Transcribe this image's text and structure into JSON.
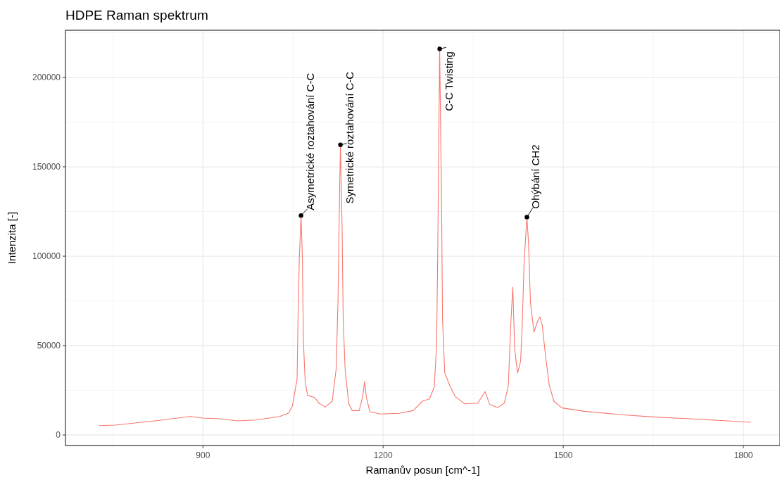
{
  "chart_data": {
    "type": "line",
    "title": "HDPE Raman spektrum",
    "xlabel": "Ramanův posun [cm^-1]",
    "ylabel": "Intenzita [-]",
    "x": [
      727,
      754,
      820,
      879,
      900,
      928,
      957,
      988,
      1028,
      1043,
      1049,
      1055,
      1056.7,
      1058.6,
      1060.5,
      1063.3,
      1065.6,
      1067.2,
      1070.3,
      1074.2,
      1086,
      1093.7,
      1103.5,
      1115.3,
      1121.9,
      1125,
      1127,
      1128.9,
      1131.7,
      1133.6,
      1136.7,
      1142.6,
      1148.4,
      1160.2,
      1166,
      1169.2,
      1171.9,
      1177.8,
      1195.3,
      1226.6,
      1250,
      1265.6,
      1277.3,
      1285.2,
      1289.1,
      1291,
      1294.2,
      1297.3,
      1299,
      1302.6,
      1311.3,
      1320.2,
      1335.7,
      1357.7,
      1369.7,
      1377.6,
      1390.8,
      1401.8,
      1408.5,
      1413,
      1416,
      1419.2,
      1423.9,
      1429,
      1431.7,
      1434.8,
      1439.5,
      1442.3,
      1445.4,
      1451.3,
      1457.2,
      1461.1,
      1465,
      1470.7,
      1476.6,
      1484.4,
      1496.1,
      1500,
      1535,
      1593.8,
      1648.5,
      1711,
      1789,
      1812.6
    ],
    "series": [
      {
        "color": "#f8766d",
        "values": [
          5250,
          5500,
          7900,
          10350,
          9450,
          9050,
          7900,
          8400,
          10350,
          12300,
          16300,
          28000,
          30700,
          71400,
          98900,
          122800,
          98900,
          53000,
          29400,
          22200,
          20900,
          17600,
          15600,
          18900,
          37300,
          76600,
          123900,
          162300,
          116000,
          63500,
          37300,
          17600,
          13650,
          13650,
          21500,
          30000,
          21500,
          13000,
          11700,
          12100,
          13650,
          18900,
          20200,
          26800,
          50400,
          102900,
          216000,
          131200,
          64600,
          34800,
          27400,
          21500,
          17400,
          17800,
          24200,
          17100,
          15300,
          17800,
          27400,
          64600,
          82600,
          47800,
          34600,
          41200,
          60900,
          96300,
          121900,
          106800,
          74000,
          57600,
          63500,
          66100,
          61500,
          43800,
          28100,
          18900,
          15600,
          15000,
          13250,
          11400,
          10100,
          9050,
          7600,
          7100
        ]
      }
    ],
    "annotations": [
      {
        "text": "Asymetrické roztahování C-C",
        "x": 1063.3,
        "y": 122800
      },
      {
        "text": "Symetrické roztahování C-C",
        "x": 1128.9,
        "y": 162300
      },
      {
        "text": "C-C Twisting",
        "x": 1294.2,
        "y": 216000
      },
      {
        "text": "Ohýbání CH2",
        "x": 1439.5,
        "y": 121900
      }
    ],
    "xlim": [
      671,
      1861
    ],
    "ylim": [
      -5900,
      226400
    ],
    "xticks": [
      900,
      1200,
      1500,
      1800
    ],
    "yticks": [
      0,
      50000,
      100000,
      150000,
      200000
    ],
    "grid": true,
    "marker": "none",
    "line_style": "solid"
  }
}
